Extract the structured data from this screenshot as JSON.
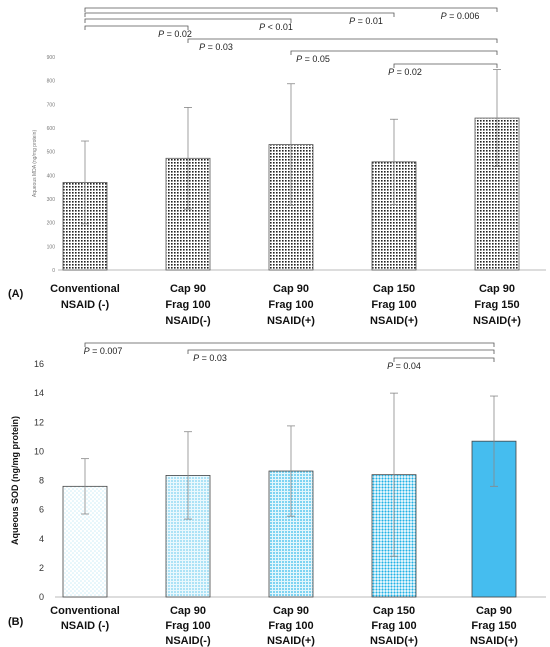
{
  "chart_data": [
    {
      "type": "bar",
      "panel_label": "(A)",
      "ylabel": "Aqueous MDA (ng/mg protein)",
      "ylim": [
        0,
        900
      ],
      "yticks": [
        0,
        100,
        200,
        300,
        400,
        500,
        600,
        700,
        800,
        900
      ],
      "categories": [
        [
          "Conventional",
          "NSAID (-)"
        ],
        [
          "Cap 90",
          "Frag 100",
          "NSAID(-)"
        ],
        [
          "Cap 90",
          "Frag 100",
          "NSAID(+)"
        ],
        [
          "Cap 150",
          "Frag 100",
          "NSAID(+)"
        ],
        [
          "Cap 90",
          "Frag 150",
          "NSAID(+)"
        ]
      ],
      "values": [
        370,
        472,
        530,
        457,
        642
      ],
      "errors": [
        175,
        215,
        257,
        180,
        205
      ],
      "comparisons": [
        {
          "from": 0,
          "to": 4,
          "label": "P = 0.006"
        },
        {
          "from": 0,
          "to": 3,
          "label": "P = 0.01"
        },
        {
          "from": 0,
          "to": 2,
          "label": "P < 0.01"
        },
        {
          "from": 0,
          "to": 1,
          "label": "P = 0.02"
        },
        {
          "from": 1,
          "to": 4,
          "label": "P = 0.03"
        },
        {
          "from": 2,
          "to": 4,
          "label": "P = 0.05"
        },
        {
          "from": 3,
          "to": 4,
          "label": "P = 0.02"
        }
      ],
      "bar_fill": "dense black dot grid on white"
    },
    {
      "type": "bar",
      "panel_label": "(B)",
      "ylabel": "Aqueous SOD (ng/mg protein)",
      "ylim": [
        0,
        16
      ],
      "yticks": [
        0,
        2,
        4,
        6,
        8,
        10,
        12,
        14,
        16
      ],
      "categories": [
        [
          "Conventional",
          "NSAID (-)"
        ],
        [
          "Cap 90",
          "Frag 100",
          "NSAID(-)"
        ],
        [
          "Cap 90",
          "Frag 100",
          "NSAID(+)"
        ],
        [
          "Cap 150",
          "Frag 100",
          "NSAID(+)"
        ],
        [
          "Cap 90",
          "Frag 150",
          "NSAID(+)"
        ]
      ],
      "values": [
        7.6,
        8.35,
        8.65,
        8.4,
        10.7
      ],
      "errors": [
        1.9,
        3.0,
        3.1,
        5.6,
        3.1
      ],
      "comparisons": [
        {
          "from": 0,
          "to": 4,
          "label": "P = 0.007"
        },
        {
          "from": 1,
          "to": 4,
          "label": "P = 0.03"
        },
        {
          "from": 3,
          "to": 4,
          "label": "P = 0.04"
        }
      ],
      "bar_colors": [
        "#cdeef8",
        "#a4dff4",
        "#7fd2f1",
        "#4cc4ee",
        "#45bdef"
      ]
    }
  ]
}
